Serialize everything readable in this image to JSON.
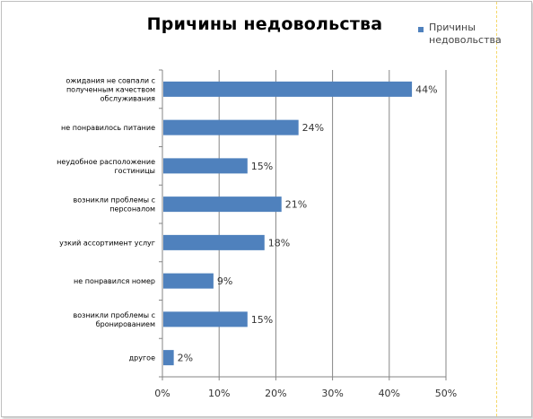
{
  "chart_data": {
    "type": "bar",
    "orientation": "horizontal",
    "title": "Причины недовольства",
    "legend": {
      "position": "top-right",
      "label": "Причины недовольства"
    },
    "categories": [
      "ожидания не совпали с полученным качеством обслуживания",
      "не понравилось питание",
      "неудобное расположение гостиницы",
      "возникли проблемы с персоналом",
      "узкий ассортимент услуг",
      "не понравился номер",
      "возникли проблемы с бронированием",
      "другое"
    ],
    "series": [
      {
        "name": "Причины недовольства",
        "values": [
          44,
          24,
          15,
          21,
          18,
          9,
          15,
          2
        ]
      }
    ],
    "value_labels": [
      "44%",
      "24%",
      "15%",
      "21%",
      "18%",
      "9%",
      "15%",
      "2%"
    ],
    "xlim": [
      0,
      50
    ],
    "xticks": [
      "0%",
      "10%",
      "20%",
      "30%",
      "40%",
      "50%"
    ],
    "grid": true,
    "color": "#4f81bd"
  }
}
